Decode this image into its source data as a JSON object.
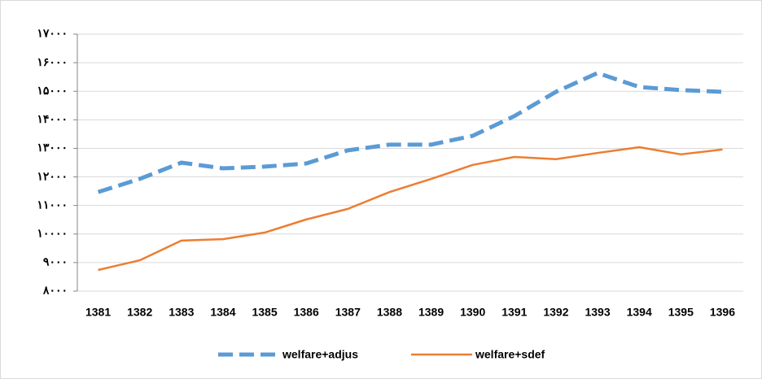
{
  "chart_data": {
    "type": "line",
    "categories": [
      "1381",
      "1382",
      "1383",
      "1384",
      "1385",
      "1386",
      "1387",
      "1388",
      "1389",
      "1390",
      "1391",
      "1392",
      "1393",
      "1394",
      "1395",
      "1396"
    ],
    "series": [
      {
        "name": "welfare+adjus",
        "color": "#5b9bd5",
        "dashed": true,
        "values": [
          11470,
          11930,
          12500,
          12300,
          12360,
          12470,
          12930,
          13130,
          13130,
          13440,
          14130,
          14980,
          15640,
          15150,
          15040,
          14980
        ]
      },
      {
        "name": "welfare+sdef",
        "color": "#ed7d31",
        "dashed": false,
        "values": [
          8740,
          9080,
          9770,
          9820,
          10050,
          10510,
          10880,
          11470,
          11930,
          12420,
          12700,
          12620,
          12840,
          13040,
          12790,
          12960
        ]
      }
    ],
    "ylim": [
      8000,
      17000
    ],
    "yticks": [
      {
        "value": 8000,
        "label": "۸۰۰۰"
      },
      {
        "value": 9000,
        "label": "۹۰۰۰"
      },
      {
        "value": 10000,
        "label": "۱۰۰۰۰"
      },
      {
        "value": 11000,
        "label": "۱۱۰۰۰"
      },
      {
        "value": 12000,
        "label": "۱۲۰۰۰"
      },
      {
        "value": 13000,
        "label": "۱۳۰۰۰"
      },
      {
        "value": 14000,
        "label": "۱۴۰۰۰"
      },
      {
        "value": 15000,
        "label": "۱۵۰۰۰"
      },
      {
        "value": 16000,
        "label": "۱۶۰۰۰"
      },
      {
        "value": 17000,
        "label": "۱۷۰۰۰"
      }
    ],
    "grid": true,
    "legend": "bottom"
  }
}
